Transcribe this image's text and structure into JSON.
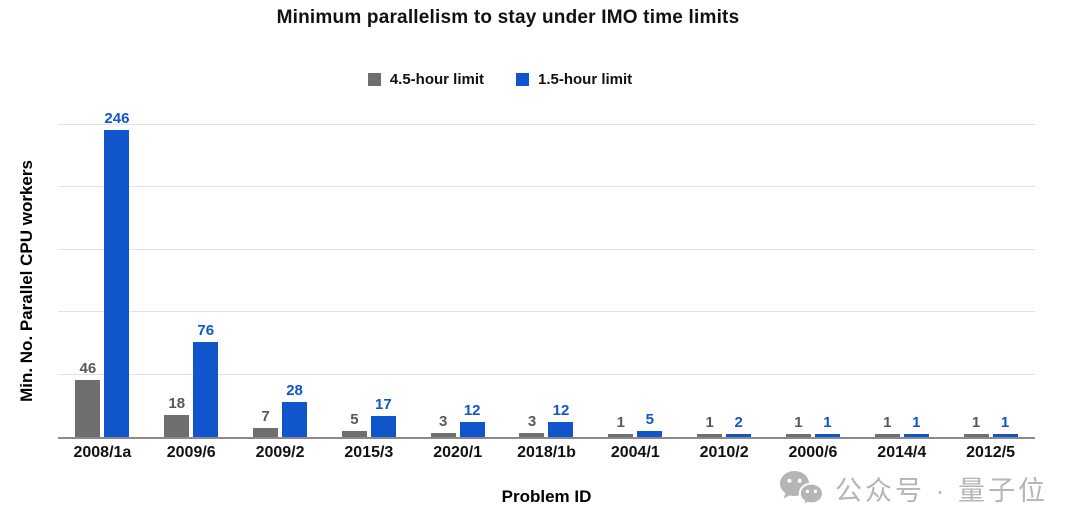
{
  "chart_data": {
    "type": "bar",
    "title": "Minimum parallelism to stay under IMO time limits",
    "xlabel": "Problem ID",
    "ylabel": "Min. No. Parallel CPU workers",
    "categories": [
      "2008/1a",
      "2009/6",
      "2009/2",
      "2015/3",
      "2020/1",
      "2018/1b",
      "2004/1",
      "2010/2",
      "2000/6",
      "2014/4",
      "2012/5"
    ],
    "series": [
      {
        "name": "4.5-hour limit",
        "color": "#6f6f6f",
        "label_color": "#595959",
        "values": [
          46,
          18,
          7,
          5,
          3,
          3,
          1,
          1,
          1,
          1,
          1
        ]
      },
      {
        "name": "1.5-hour limit",
        "color": "#1155cc",
        "label_color": "#1155cc",
        "values": [
          246,
          76,
          28,
          17,
          12,
          12,
          5,
          2,
          1,
          1,
          1
        ]
      }
    ],
    "ylim": [
      0,
      250
    ],
    "gridline_step": 50,
    "grid": true,
    "legend_position": "top",
    "y_tick_labels_visible": false,
    "value_labels_visible": true,
    "colors": {
      "gridline": "#e2e2e2",
      "axis_line": "#8a8a8a",
      "background": "#ffffff"
    }
  },
  "watermark": {
    "icon": "wechat-icon",
    "text": "公众号 · 量子位",
    "color": "#b5b5b5"
  }
}
